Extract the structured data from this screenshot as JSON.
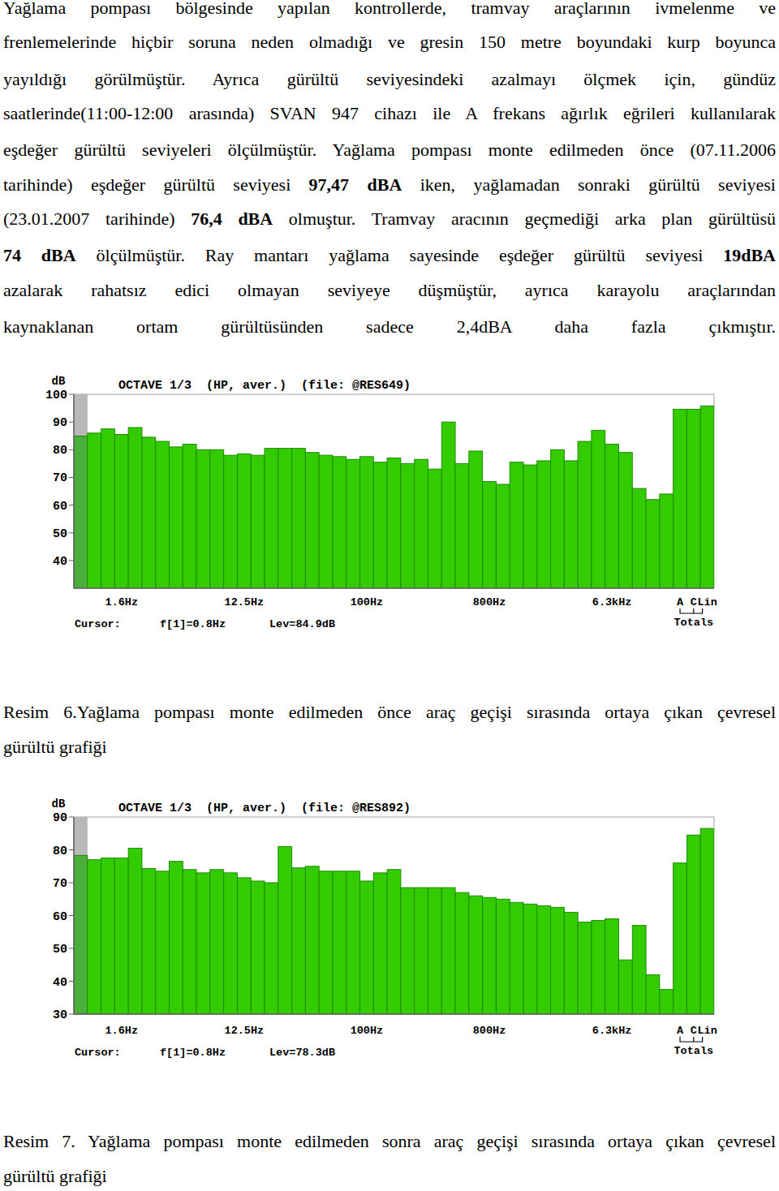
{
  "document": {
    "paragraph": [
      [
        {
          "text": "Yağlama pompası bölgesinde yapılan kontrollerde, tramvay araçlarının ivmelenme ve",
          "bold": false
        }
      ],
      [
        {
          "text": "frenlemelerinde hiçbir soruna neden olmadığı ve gresin 150 metre boyundaki kurp boyunca",
          "bold": false
        }
      ],
      [
        {
          "text": "yayıldığı görülmüştür. Ayrıca gürültü seviyesindeki azalmayı ölçmek için, gündüz",
          "bold": false
        }
      ],
      [
        {
          "text": "saatlerinde(11:00-12:00 arasında) SVAN 947 cihazı ile A frekans ağırlık eğrileri kullanılarak",
          "bold": false
        }
      ],
      [
        {
          "text": "eşdeğer gürültü seviyeleri ölçülmüştür. Yağlama pompası monte edilmeden önce (07.11.2006",
          "bold": false
        }
      ],
      [
        {
          "text": "tarihinde) eşdeğer gürültü seviyesi ",
          "bold": false
        },
        {
          "text": "97,47 dBA",
          "bold": true
        },
        {
          "text": " iken, yağlamadan sonraki gürültü seviyesi",
          "bold": false
        }
      ],
      [
        {
          "text": "(23.01.2007 tarihinde) ",
          "bold": false
        },
        {
          "text": "76,4 dBA",
          "bold": true
        },
        {
          "text": " olmuştur. Tramvay aracının geçmediği arka plan gürültüsü",
          "bold": false
        }
      ],
      [
        {
          "text": "74 dBA",
          "bold": true
        },
        {
          "text": " ölçülmüştür. Ray mantarı yağlama sayesinde eşdeğer gürültü seviyesi ",
          "bold": false
        },
        {
          "text": "19dBA",
          "bold": true
        }
      ],
      [
        {
          "text": "azalarak rahatsız edici olmayan seviyeye düşmüştür, ayrıca karayolu araçlarından",
          "bold": false
        }
      ],
      [
        {
          "text": "kaynaklanan ortam gürültüsünden sadece 2,4dBA daha fazla çıkmıştır.",
          "bold": false
        }
      ]
    ],
    "captions": [
      [
        "Resim 6.Yağlama pompası monte edilmeden önce  araç geçişi sırasında ortaya çıkan çevresel",
        "gürültü grafiği"
      ],
      [
        "Resim 7. Yağlama pompası monte edilmeden sonra araç geçişi sırasında ortaya çıkan çevresel",
        "gürültü grafiği"
      ]
    ]
  },
  "chart_data": [
    {
      "type": "bar",
      "title": "OCTAVE 1/3  (HP, aver.)  (file: @RES649)",
      "y_label": "dB",
      "categories": [
        null,
        null,
        null,
        "1.6Hz",
        null,
        null,
        null,
        null,
        null,
        null,
        null,
        null,
        "12.5Hz",
        null,
        null,
        null,
        null,
        null,
        null,
        null,
        null,
        "100Hz",
        null,
        null,
        null,
        null,
        null,
        null,
        null,
        null,
        "800Hz",
        null,
        null,
        null,
        null,
        null,
        null,
        null,
        null,
        "6.3kHz",
        null,
        null,
        null,
        null,
        "A",
        "C",
        "Lin"
      ],
      "values": [
        84.9,
        86,
        87.5,
        85.5,
        88,
        84.5,
        83,
        81,
        82,
        80,
        80,
        78,
        78.5,
        78,
        80.5,
        80.5,
        80.5,
        79,
        78,
        77.5,
        76.5,
        77.5,
        75.5,
        77,
        75,
        76.5,
        73,
        90,
        75,
        79.5,
        68.5,
        67.5,
        75.5,
        74.5,
        76,
        80,
        76,
        83,
        87,
        82,
        79,
        66,
        62,
        64,
        94.6,
        94.6,
        95.8
      ],
      "color": "#33cc00",
      "ylim": [
        30,
        100
      ],
      "yticks": [
        40,
        50,
        60,
        70,
        80,
        90,
        100
      ],
      "grid": false,
      "annotations": [
        "Cursor:",
        "f[1]=0.8Hz",
        "Lev=84.9dB",
        "Totals"
      ]
    },
    {
      "type": "bar",
      "title": "OCTAVE 1/3  (HP, aver.)  (file: @RES892)",
      "y_label": "dB",
      "categories": [
        null,
        null,
        null,
        "1.6Hz",
        null,
        null,
        null,
        null,
        null,
        null,
        null,
        null,
        "12.5Hz",
        null,
        null,
        null,
        null,
        null,
        null,
        null,
        null,
        "100Hz",
        null,
        null,
        null,
        null,
        null,
        null,
        null,
        null,
        "800Hz",
        null,
        null,
        null,
        null,
        null,
        null,
        null,
        null,
        "6.3kHz",
        null,
        null,
        null,
        null,
        "A",
        "C",
        "Lin"
      ],
      "values": [
        78.3,
        77,
        77.5,
        77.5,
        80.5,
        74.3,
        73.5,
        76.5,
        74,
        73,
        74,
        73,
        71.5,
        70.5,
        70,
        81,
        74.5,
        75,
        73.5,
        73.5,
        73.5,
        70.5,
        73,
        74,
        68.5,
        68.5,
        68.5,
        68.5,
        67,
        66,
        65.5,
        65,
        64,
        63.5,
        63,
        62.5,
        61,
        58,
        58.5,
        59,
        46.5,
        57,
        42,
        37.5,
        76,
        84.5,
        86.5
      ],
      "color": "#33cc00",
      "ylim": [
        30,
        90
      ],
      "yticks": [
        30,
        40,
        50,
        60,
        70,
        80,
        90
      ],
      "grid": false,
      "annotations": [
        "Cursor:",
        "f[1]=0.8Hz",
        "Lev=78.3dB",
        "Totals"
      ]
    }
  ]
}
